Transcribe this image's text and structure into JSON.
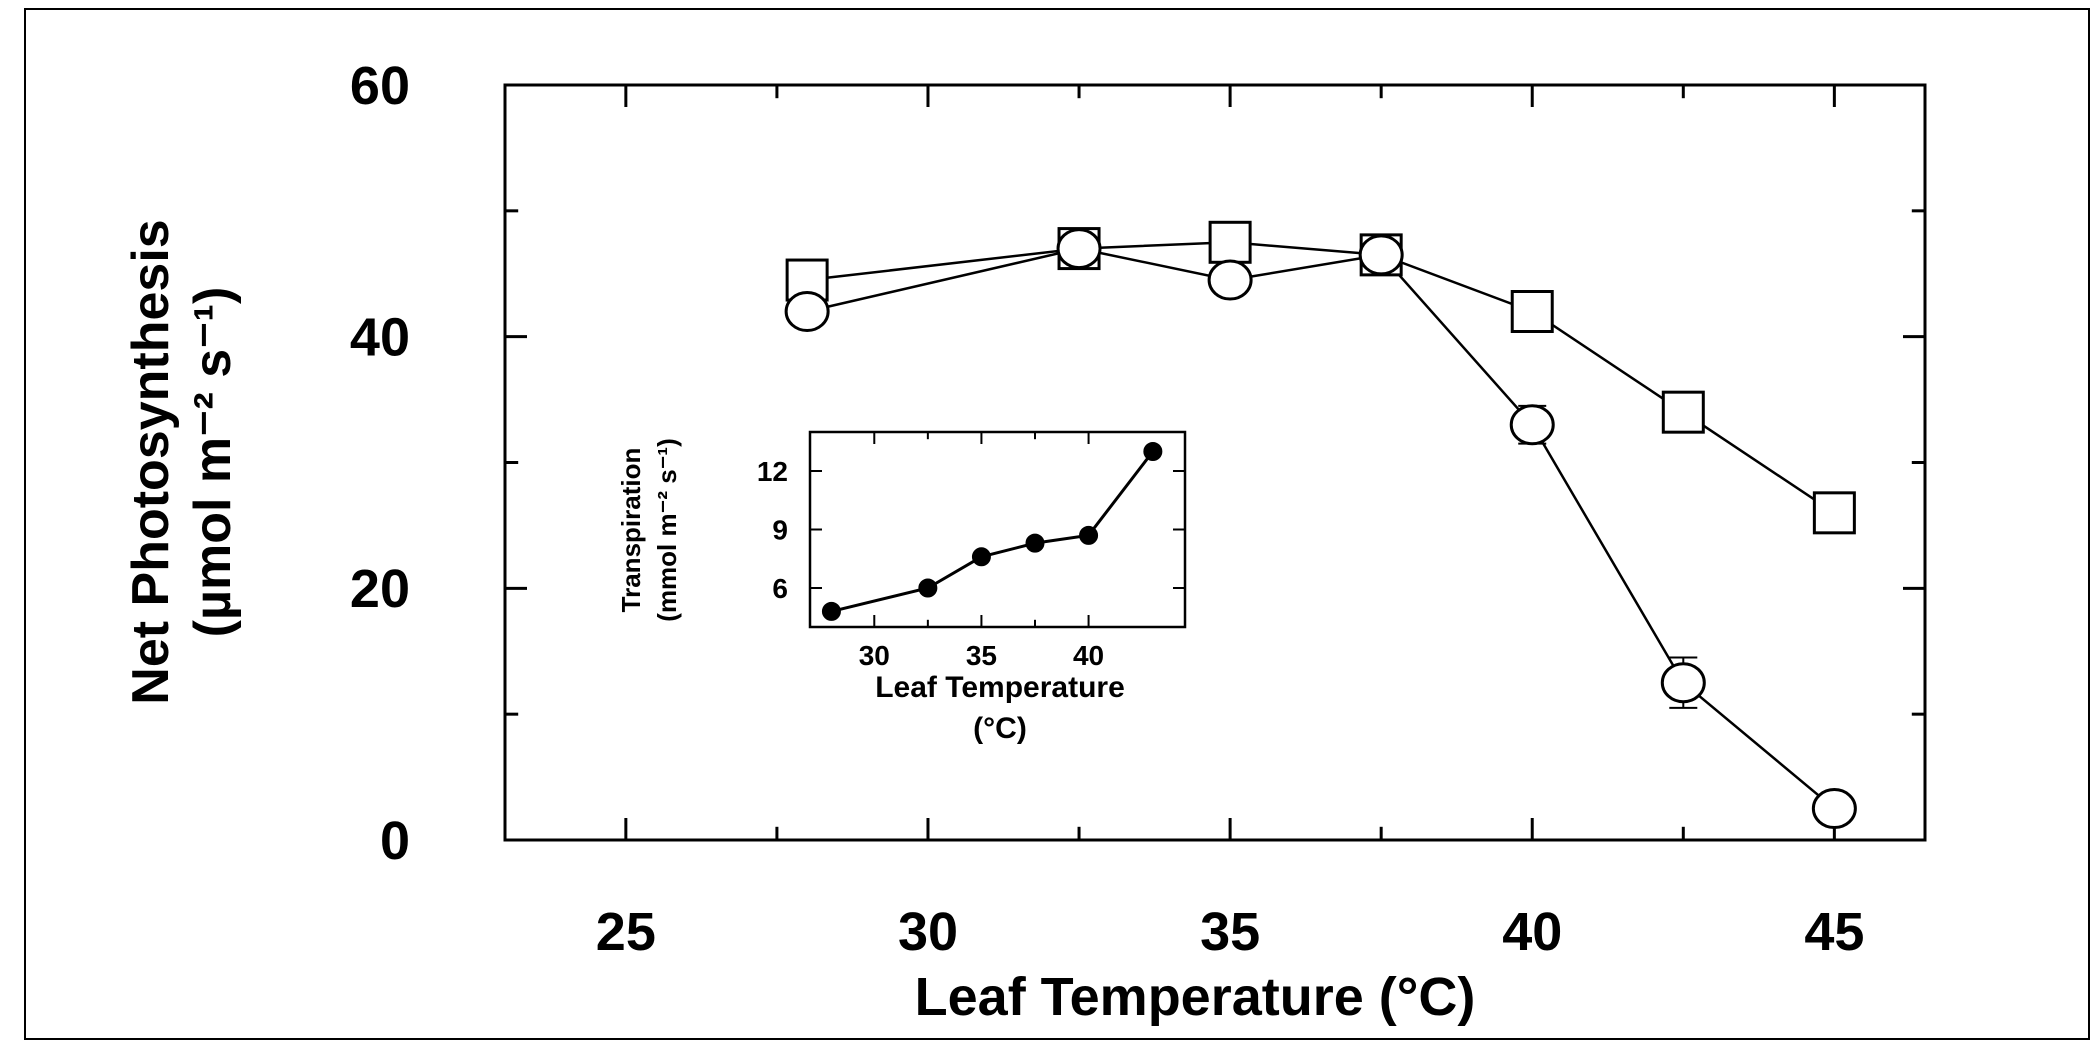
{
  "chart_data": [
    {
      "id": "main",
      "type": "line",
      "title": "",
      "xlabel": "Leaf Temperature (°C)",
      "ylabel_line1": "Net Photosynthesis",
      "ylabel_line2": "(µmol m⁻² s⁻¹)",
      "xlim": [
        23,
        46.5
      ],
      "ylim": [
        0,
        60
      ],
      "x_ticks": [
        25,
        30,
        35,
        40,
        45
      ],
      "y_ticks": [
        0,
        20,
        40,
        60
      ],
      "grid": false,
      "series": [
        {
          "marker": "square",
          "x": [
            28,
            32.5,
            35,
            37.5,
            40,
            42.5,
            45
          ],
          "y": [
            44.5,
            47,
            47.5,
            46.5,
            42,
            34,
            26
          ],
          "yerr": [
            1.5,
            1,
            1,
            1,
            0.5,
            0.5,
            0.5
          ]
        },
        {
          "marker": "circle",
          "x": [
            28,
            32.5,
            35,
            37.5,
            40,
            42.5,
            45
          ],
          "y": [
            42,
            47,
            44.5,
            46.5,
            33,
            12.5,
            2.5
          ],
          "yerr": [
            0.8,
            1,
            1.2,
            1,
            1.5,
            2,
            1
          ]
        }
      ]
    },
    {
      "id": "inset",
      "type": "line",
      "title": "",
      "xlabel_line1": "Leaf Temperature",
      "xlabel_line2": "(°C)",
      "ylabel_line1": "Transpiration",
      "ylabel_line2": "(mmol m⁻² s⁻¹)",
      "xlim": [
        27,
        44.5
      ],
      "ylim": [
        4,
        14
      ],
      "x_ticks": [
        30,
        35,
        40
      ],
      "y_ticks": [
        6,
        9,
        12
      ],
      "grid": false,
      "series": [
        {
          "marker": "filled-circle",
          "x": [
            28,
            32.5,
            35,
            37.5,
            40,
            43
          ],
          "y": [
            4.8,
            6,
            7.6,
            8.3,
            8.7,
            13
          ]
        }
      ]
    }
  ]
}
